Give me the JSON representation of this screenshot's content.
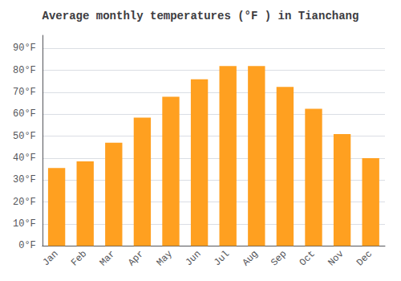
{
  "chart_data": {
    "type": "bar",
    "title": "Average monthly temperatures (°F ) in Tianchang",
    "categories": [
      "Jan",
      "Feb",
      "Mar",
      "Apr",
      "May",
      "Jun",
      "Jul",
      "Aug",
      "Sep",
      "Oct",
      "Nov",
      "Dec"
    ],
    "values": [
      35.5,
      38.5,
      47.0,
      58.5,
      68.0,
      76.0,
      82.0,
      82.0,
      72.5,
      62.5,
      51.0,
      40.0
    ],
    "color": "#FFA020",
    "ylim": [
      0,
      96
    ],
    "yticks": [
      {
        "value": 0,
        "label": "0°F"
      },
      {
        "value": 10,
        "label": "10°F"
      },
      {
        "value": 20,
        "label": "20°F"
      },
      {
        "value": 30,
        "label": "30°F"
      },
      {
        "value": 40,
        "label": "40°F"
      },
      {
        "value": 50,
        "label": "50°F"
      },
      {
        "value": 60,
        "label": "60°F"
      },
      {
        "value": 70,
        "label": "70°F"
      },
      {
        "value": 80,
        "label": "80°F"
      },
      {
        "value": 90,
        "label": "90°F"
      }
    ],
    "grid": true
  }
}
